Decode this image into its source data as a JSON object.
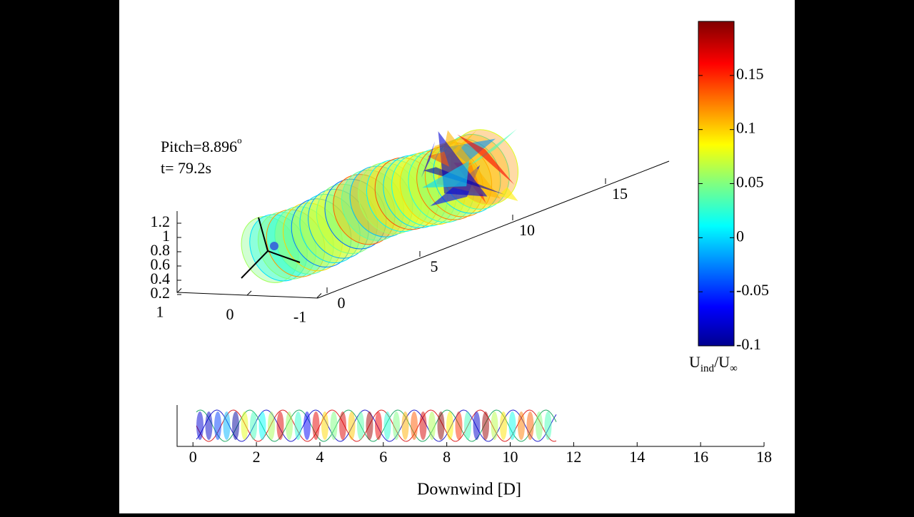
{
  "chart_data": [
    {
      "type": "wake3d",
      "annotation_pitch": "Pitch=8.896",
      "annotation_pitch_unit": "o",
      "annotation_time": "t= 79.2s",
      "xticks": [
        0,
        5,
        10,
        15
      ],
      "yticks": [
        1,
        0,
        -1
      ],
      "zticks": [
        0.2,
        0.4,
        0.6,
        0.8,
        1,
        1.2
      ]
    },
    {
      "type": "colorbar",
      "clim": [
        -0.1,
        0.2
      ],
      "ticks": [
        -0.1,
        -0.05,
        0,
        0.05,
        0.1,
        0.15
      ],
      "label_main": "U",
      "label_sub": "ind",
      "label_mid": "/U",
      "label_sub2": "∞"
    },
    {
      "type": "wake2d",
      "xlim": [
        -0.5,
        18
      ],
      "xticks": [
        0,
        2,
        4,
        6,
        8,
        10,
        12,
        14,
        16,
        18
      ],
      "xlabel": "Downwind [D]"
    }
  ]
}
